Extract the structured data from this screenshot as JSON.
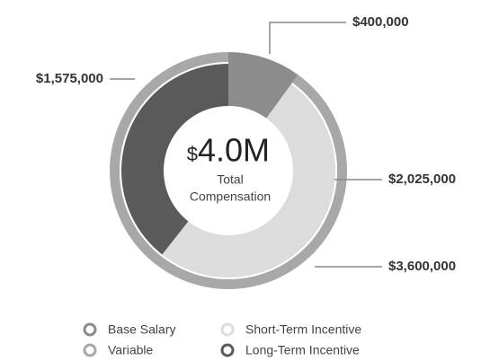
{
  "chart_data": {
    "type": "donut",
    "center_prefix": "$",
    "center_value": "4.0M",
    "center_label": [
      "Total",
      "Compensation"
    ],
    "categories": [
      "Base Salary",
      "Short-Term Incentive",
      "Long-Term Incentive"
    ],
    "values": [
      400000,
      2025000,
      1575000
    ],
    "value_labels": [
      "$400,000",
      "$2,025,000",
      "$1,575,000"
    ],
    "colors": [
      "#8c8c8c",
      "#dcdcdc",
      "#5a5a5a"
    ],
    "outer_categories": [
      "Variable"
    ],
    "outer_values": [
      3600000
    ],
    "outer_value_labels": [
      "$3,600,000"
    ],
    "outer_colors": [
      "#a8a8a8"
    ]
  }
}
